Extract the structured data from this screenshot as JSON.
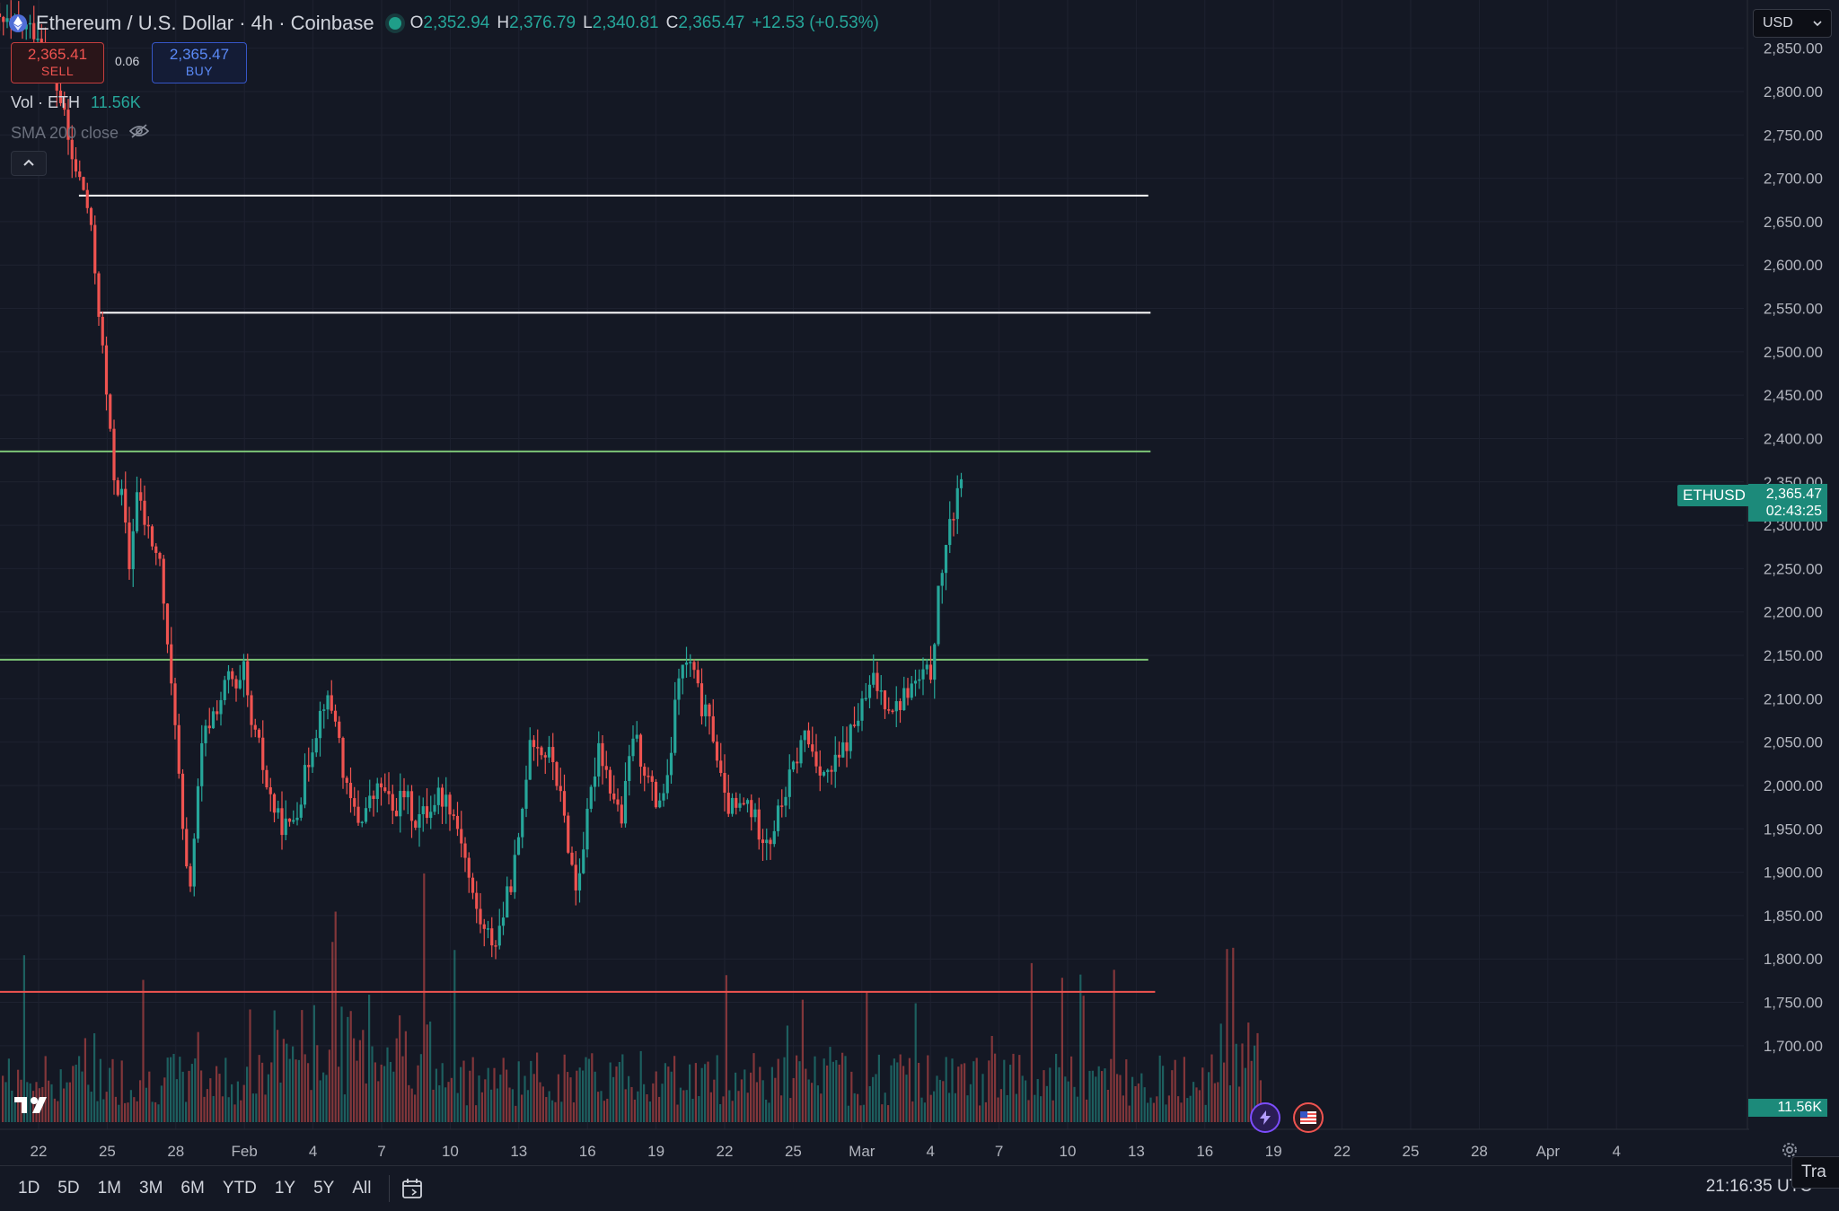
{
  "legend": {
    "title": "Ethereum / U.S. Dollar · 4h · Coinbase",
    "ohlc": [
      {
        "k": "O",
        "v": "2,352.94"
      },
      {
        "k": "H",
        "v": "2,376.79"
      },
      {
        "k": "L",
        "v": "2,340.81"
      },
      {
        "k": "C",
        "v": "2,365.47"
      }
    ],
    "change": "+12.53 (+0.53%)"
  },
  "trade": {
    "sell_price": "2,365.41",
    "sell_label": "SELL",
    "spread": "0.06",
    "buy_price": "2,365.47",
    "buy_label": "BUY"
  },
  "indicators": {
    "vol_label": "Vol · ETH",
    "vol_value": "11.56K",
    "sma_label": "SMA 200 close"
  },
  "currency": "USD",
  "price_tag": {
    "symbol": "ETHUSD",
    "price": "2,365.47",
    "countdown": "02:43:25"
  },
  "vol_tag": "11.56K",
  "bottom": {
    "ranges": [
      "1D",
      "5D",
      "1M",
      "3M",
      "6M",
      "YTD",
      "1Y",
      "5Y",
      "All"
    ],
    "clock": "21:16:35 UTC",
    "trade_chip": "Tra"
  },
  "colors": {
    "up": "#26a69a",
    "down": "#ef5350",
    "resistance": "#ffffff",
    "support": "#7cc576",
    "low_line": "#ef5350"
  },
  "chart_data": {
    "type": "candlestick",
    "title": "Ethereum / U.S. Dollar · 4h · Coinbase",
    "y_ticks": [
      1700,
      1750,
      1800,
      1850,
      1900,
      1950,
      2000,
      2050,
      2100,
      2150,
      2200,
      2250,
      2300,
      2350,
      2400,
      2450,
      2500,
      2550,
      2600,
      2650,
      2700,
      2750,
      2800,
      2850
    ],
    "y_tick_labels": [
      "1,700.00",
      "1,750.00",
      "1,800.00",
      "1,850.00",
      "1,900.00",
      "1,950.00",
      "2,000.00",
      "2,050.00",
      "2,100.00",
      "2,150.00",
      "2,200.00",
      "2,250.00",
      "2,300.00",
      "2,350.00",
      "2,400.00",
      "2,450.00",
      "2,500.00",
      "2,550.00",
      "2,600.00",
      "2,650.00",
      "2,700.00",
      "2,750.00",
      "2,800.00",
      "2,850.00"
    ],
    "x_labels": [
      "22",
      "25",
      "28",
      "Feb",
      "4",
      "7",
      "10",
      "13",
      "16",
      "19",
      "22",
      "25",
      "Mar",
      "4",
      "7",
      "10",
      "13",
      "16",
      "19",
      "22",
      "25",
      "28",
      "Apr",
      "4"
    ],
    "price_path": [
      {
        "day": -12,
        "p": 2880
      },
      {
        "day": -10,
        "p": 2870
      },
      {
        "day": -9,
        "p": 2790
      },
      {
        "day": -8.5,
        "p": 2720
      },
      {
        "day": -7.9,
        "p": 2680
      },
      {
        "day": -7.6,
        "p": 2620
      },
      {
        "day": -7.3,
        "p": 2540
      },
      {
        "day": -7.0,
        "p": 2450
      },
      {
        "day": -6.7,
        "p": 2360
      },
      {
        "day": -6.3,
        "p": 2330
      },
      {
        "day": -6.0,
        "p": 2250
      },
      {
        "day": -5.7,
        "p": 2340
      },
      {
        "day": -5.3,
        "p": 2300
      },
      {
        "day": -5.0,
        "p": 2280
      },
      {
        "day": -4.6,
        "p": 2250
      },
      {
        "day": -4.3,
        "p": 2140
      },
      {
        "day": -4.0,
        "p": 2080
      },
      {
        "day": -3.7,
        "p": 1950
      },
      {
        "day": -3.4,
        "p": 1870
      },
      {
        "day": -3.1,
        "p": 1960
      },
      {
        "day": -2.8,
        "p": 2050
      },
      {
        "day": -2.4,
        "p": 2080
      },
      {
        "day": -2.0,
        "p": 2100
      },
      {
        "day": -1.6,
        "p": 2130
      },
      {
        "day": -1.3,
        "p": 2100
      },
      {
        "day": -1.0,
        "p": 2130
      },
      {
        "day": -0.7,
        "p": 2070
      },
      {
        "day": -0.3,
        "p": 2040
      },
      {
        "day": 0,
        "p": 2000
      },
      {
        "day": 0.5,
        "p": 1960
      },
      {
        "day": 1.0,
        "p": 1950
      },
      {
        "day": 1.5,
        "p": 1990
      },
      {
        "day": 2.0,
        "p": 2050
      },
      {
        "day": 2.5,
        "p": 2100
      },
      {
        "day": 3.0,
        "p": 2080
      },
      {
        "day": 3.5,
        "p": 1990
      },
      {
        "day": 4.0,
        "p": 1960
      },
      {
        "day": 4.5,
        "p": 1980
      },
      {
        "day": 5.0,
        "p": 2000
      },
      {
        "day": 5.5,
        "p": 1970
      },
      {
        "day": 6.0,
        "p": 1990
      },
      {
        "day": 6.5,
        "p": 1960
      },
      {
        "day": 7.0,
        "p": 1970
      },
      {
        "day": 7.5,
        "p": 1990
      },
      {
        "day": 8.0,
        "p": 1980
      },
      {
        "day": 8.5,
        "p": 1940
      },
      {
        "day": 9.0,
        "p": 1870
      },
      {
        "day": 9.5,
        "p": 1830
      },
      {
        "day": 10.0,
        "p": 1820
      },
      {
        "day": 10.5,
        "p": 1870
      },
      {
        "day": 11.0,
        "p": 1930
      },
      {
        "day": 11.5,
        "p": 2060
      },
      {
        "day": 12.0,
        "p": 2040
      },
      {
        "day": 12.5,
        "p": 2030
      },
      {
        "day": 13.0,
        "p": 1960
      },
      {
        "day": 13.5,
        "p": 1880
      },
      {
        "day": 14.0,
        "p": 1960
      },
      {
        "day": 14.5,
        "p": 2050
      },
      {
        "day": 15.0,
        "p": 2000
      },
      {
        "day": 15.5,
        "p": 1960
      },
      {
        "day": 16.0,
        "p": 2060
      },
      {
        "day": 16.5,
        "p": 2020
      },
      {
        "day": 17.0,
        "p": 1980
      },
      {
        "day": 17.5,
        "p": 2000
      },
      {
        "day": 18.0,
        "p": 2130
      },
      {
        "day": 18.5,
        "p": 2140
      },
      {
        "day": 19.0,
        "p": 2090
      },
      {
        "day": 19.5,
        "p": 2060
      },
      {
        "day": 20.0,
        "p": 1980
      },
      {
        "day": 20.5,
        "p": 1970
      },
      {
        "day": 21.0,
        "p": 1980
      },
      {
        "day": 21.5,
        "p": 1950
      },
      {
        "day": 22.0,
        "p": 1940
      },
      {
        "day": 22.5,
        "p": 1980
      },
      {
        "day": 23.0,
        "p": 2020
      },
      {
        "day": 23.5,
        "p": 2060
      },
      {
        "day": 24.0,
        "p": 2030
      },
      {
        "day": 24.5,
        "p": 2010
      },
      {
        "day": 25.0,
        "p": 2030
      },
      {
        "day": 25.5,
        "p": 2060
      },
      {
        "day": 26.0,
        "p": 2090
      },
      {
        "day": 26.5,
        "p": 2120
      },
      {
        "day": 27.0,
        "p": 2100
      },
      {
        "day": 27.5,
        "p": 2090
      },
      {
        "day": 28.0,
        "p": 2110
      },
      {
        "day": 28.5,
        "p": 2120
      },
      {
        "day": 29.0,
        "p": 2130
      },
      {
        "day": 29.3,
        "p": 2210
      },
      {
        "day": 29.6,
        "p": 2270
      },
      {
        "day": 29.9,
        "p": 2300
      },
      {
        "day": 30.2,
        "p": 2350
      },
      {
        "day": 30.4,
        "p": 2365.47
      }
    ],
    "lines": [
      {
        "name": "resistance",
        "price": 2680,
        "from_day": -8.2,
        "to_day": 38.5,
        "color": "#ffffff"
      },
      {
        "name": "resistance",
        "price": 2545,
        "from_day": -7.3,
        "to_day": 38.6,
        "color": "#ffffff"
      },
      {
        "name": "support",
        "price": 2385,
        "from_day": -13,
        "to_day": 38.6,
        "color": "#7cc576"
      },
      {
        "name": "support",
        "price": 2145,
        "from_day": -13,
        "to_day": 38.5,
        "color": "#7cc576"
      },
      {
        "name": "low",
        "price": 1762,
        "from_day": -13,
        "to_day": 38.8,
        "color": "#ef5350"
      }
    ]
  }
}
